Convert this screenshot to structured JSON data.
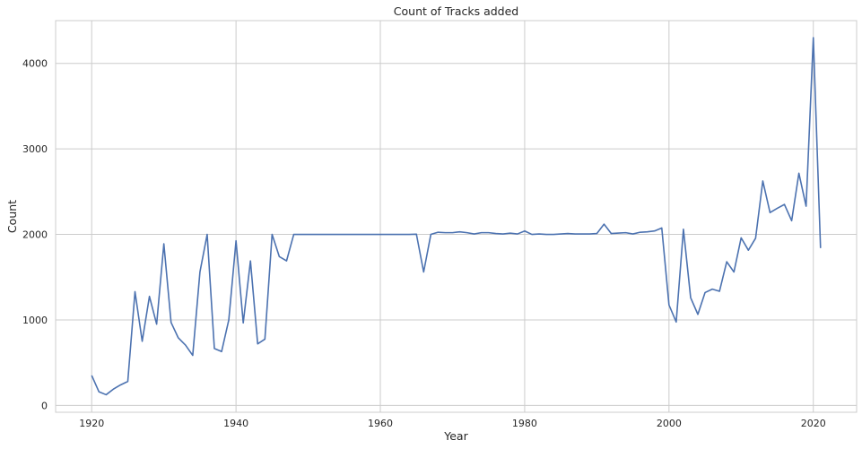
{
  "chart_data": {
    "type": "line",
    "title": "Count of Tracks added",
    "xlabel": "Year",
    "ylabel": "Count",
    "xlim": [
      1915,
      2026
    ],
    "ylim": [
      -80,
      4500
    ],
    "xticks": [
      1920,
      1940,
      1960,
      1980,
      2000,
      2020
    ],
    "yticks": [
      0,
      1000,
      2000,
      3000,
      4000
    ],
    "grid": true,
    "color": "#4c72b0",
    "series": [
      {
        "x": [
          1920,
          1921,
          1922,
          1923,
          1924,
          1925,
          1926,
          1927,
          1928,
          1929,
          1930,
          1931,
          1932,
          1933,
          1934,
          1935,
          1936,
          1937,
          1938,
          1939,
          1940,
          1941,
          1942,
          1943,
          1944,
          1945,
          1946,
          1947,
          1948,
          1949,
          1950,
          1951,
          1952,
          1953,
          1954,
          1955,
          1956,
          1957,
          1958,
          1959,
          1960,
          1961,
          1962,
          1963,
          1964,
          1965,
          1966,
          1967,
          1968,
          1969,
          1970,
          1971,
          1972,
          1973,
          1974,
          1975,
          1976,
          1977,
          1978,
          1979,
          1980,
          1981,
          1982,
          1983,
          1984,
          1985,
          1986,
          1987,
          1988,
          1989,
          1990,
          1991,
          1992,
          1993,
          1994,
          1995,
          1996,
          1997,
          1998,
          1999,
          2000,
          2001,
          2002,
          2003,
          2004,
          2005,
          2006,
          2007,
          2008,
          2009,
          2010,
          2011,
          2012,
          2013,
          2014,
          2015,
          2016,
          2017,
          2018,
          2019,
          2020,
          2021
        ],
        "values": [
          350,
          160,
          125,
          190,
          240,
          280,
          1330,
          750,
          1275,
          950,
          1890,
          970,
          790,
          705,
          585,
          1560,
          2000,
          665,
          630,
          1000,
          1925,
          965,
          1690,
          720,
          775,
          2000,
          1740,
          1690,
          2000,
          2000,
          2000,
          2000,
          2000,
          2000,
          2000,
          2000,
          2000,
          2000,
          2000,
          2000,
          2000,
          2000,
          2000,
          2000,
          2000,
          2002,
          1560,
          2000,
          2025,
          2020,
          2020,
          2030,
          2020,
          2005,
          2020,
          2020,
          2010,
          2005,
          2015,
          2005,
          2040,
          2000,
          2005,
          2000,
          2000,
          2005,
          2010,
          2005,
          2005,
          2005,
          2010,
          2120,
          2010,
          2015,
          2020,
          2005,
          2025,
          2030,
          2040,
          2075,
          1175,
          975,
          2060,
          1260,
          1065,
          1320,
          1360,
          1335,
          1680,
          1560,
          1960,
          1815,
          1955,
          2625,
          2255,
          2305,
          2350,
          2160,
          2715,
          2330,
          4300,
          1840
        ]
      }
    ]
  }
}
